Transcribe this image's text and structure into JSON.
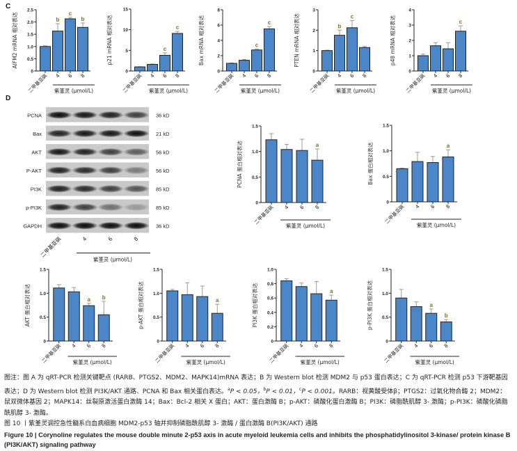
{
  "panels": {
    "c": "C",
    "d": "D"
  },
  "x_categories": [
    "二甲基亚砜",
    "4",
    "6",
    "8"
  ],
  "group_label": "紫堇灵 (μmol/L)",
  "colors": {
    "bar": "#4a86c8",
    "outline": "#222222",
    "sig": "#8a6a1a"
  },
  "western_blot": {
    "rows": [
      {
        "protein": "PCNA",
        "size": "36 kD",
        "intensity": [
          0.95,
          0.9,
          0.85,
          0.7
        ]
      },
      {
        "protein": "Bax",
        "size": "21 kD",
        "intensity": [
          0.85,
          0.9,
          0.9,
          0.95
        ]
      },
      {
        "protein": "AKT",
        "size": "56 kD",
        "intensity": [
          0.9,
          0.85,
          0.7,
          0.55
        ]
      },
      {
        "protein": "P-AKT",
        "size": "56 kD",
        "intensity": [
          0.85,
          0.8,
          0.7,
          0.4
        ]
      },
      {
        "protein": "PI3K",
        "size": "85 kD",
        "intensity": [
          0.85,
          0.8,
          0.7,
          0.6
        ]
      },
      {
        "protein": "p-PI3K",
        "size": "85 kD",
        "intensity": [
          0.85,
          0.7,
          0.45,
          0.25
        ]
      },
      {
        "protein": "GAPDH",
        "size": "36 kD",
        "intensity": [
          0.95,
          0.95,
          0.95,
          0.95
        ]
      }
    ]
  },
  "chart_data": [
    {
      "type": "bar",
      "panel": "C",
      "ylabel": "AIFM2 mRNA 相对表达",
      "ylim": [
        0,
        2.5
      ],
      "yticks": [
        "0",
        "0.5",
        "1.0",
        "1.5",
        "2.0",
        "2.5"
      ],
      "values": [
        1.0,
        1.63,
        2.13,
        1.78
      ],
      "errors": [
        0.03,
        0.3,
        0.06,
        0.18
      ],
      "significance": [
        "",
        "b",
        "c",
        "b"
      ]
    },
    {
      "type": "bar",
      "panel": "C",
      "ylabel": "p21 mRNA 相对表达",
      "ylim": [
        0,
        15
      ],
      "yticks": [
        "0",
        "5",
        "10",
        "15"
      ],
      "values": [
        1.0,
        1.6,
        3.8,
        9.1
      ],
      "errors": [
        0.05,
        0.1,
        0.6,
        0.5
      ],
      "significance": [
        "",
        "",
        "c",
        "c"
      ]
    },
    {
      "type": "bar",
      "panel": "C",
      "ylabel": "Bax mRNA 相对表达",
      "ylim": [
        0,
        8
      ],
      "yticks": [
        "0",
        "2",
        "4",
        "6",
        "8"
      ],
      "values": [
        1.0,
        1.4,
        2.75,
        5.5
      ],
      "errors": [
        0.05,
        0.1,
        0.1,
        0.3
      ],
      "significance": [
        "",
        "",
        "c",
        "c"
      ]
    },
    {
      "type": "bar",
      "panel": "C",
      "ylabel": "PTEN mRNA 相对表达",
      "ylim": [
        0,
        3
      ],
      "yticks": [
        "0",
        "1",
        "2",
        "3"
      ],
      "values": [
        1.0,
        1.75,
        2.12,
        1.15
      ],
      "errors": [
        0.02,
        0.25,
        0.35,
        0.05
      ],
      "significance": [
        "",
        "b",
        "c",
        ""
      ]
    },
    {
      "type": "bar",
      "panel": "C",
      "ylabel": "p48 mRNA 相对表达",
      "ylim": [
        0,
        4
      ],
      "yticks": [
        "0",
        "1",
        "2",
        "3",
        "4"
      ],
      "values": [
        1.0,
        1.65,
        1.45,
        2.6
      ],
      "errors": [
        0.1,
        0.2,
        0.4,
        0.35
      ],
      "significance": [
        "",
        "",
        "",
        "c"
      ]
    },
    {
      "type": "bar",
      "panel": "D",
      "ylabel": "PCNA 蛋白相对表达",
      "ylim": [
        0,
        1.5
      ],
      "yticks": [
        "0",
        "0.5",
        "1.0",
        "1.5"
      ],
      "values": [
        1.23,
        1.04,
        1.02,
        0.83
      ],
      "errors": [
        0.12,
        0.1,
        0.22,
        0.22
      ],
      "significance": [
        "",
        "",
        "",
        "a"
      ]
    },
    {
      "type": "bar",
      "panel": "D",
      "ylabel": "Bax 蛋白相对表达",
      "ylim": [
        0,
        1.5
      ],
      "yticks": [
        "0",
        "0.5",
        "1.0",
        "1.5"
      ],
      "values": [
        0.65,
        0.79,
        0.77,
        0.88
      ],
      "errors": [
        0.01,
        0.18,
        0.12,
        0.14
      ],
      "significance": [
        "",
        "",
        "",
        "a"
      ]
    },
    {
      "type": "bar",
      "panel": "D",
      "ylabel": "AKT 蛋白相对表达",
      "ylim": [
        0,
        1.5
      ],
      "yticks": [
        "0",
        "0.5",
        "1.0",
        "1.5"
      ],
      "values": [
        1.11,
        1.03,
        0.74,
        0.55
      ],
      "errors": [
        0.07,
        0.09,
        0.05,
        0.28
      ],
      "significance": [
        "",
        "",
        "a",
        "b"
      ]
    },
    {
      "type": "bar",
      "panel": "D",
      "ylabel": "p-AKT 蛋白相对表达",
      "ylim": [
        0,
        1.5
      ],
      "yticks": [
        "0",
        "0.5",
        "1.0",
        "1.5"
      ],
      "values": [
        1.05,
        0.97,
        0.93,
        0.58
      ],
      "errors": [
        0.03,
        0.25,
        0.22,
        0.19
      ],
      "significance": [
        "",
        "",
        "",
        "a"
      ]
    },
    {
      "type": "bar",
      "panel": "D",
      "ylabel": "PI3K 蛋白相对表达",
      "ylim": [
        0,
        1.0
      ],
      "yticks": [
        "0",
        "0.2",
        "0.4",
        "0.6",
        "0.8",
        "1.0"
      ],
      "values": [
        0.84,
        0.76,
        0.66,
        0.57
      ],
      "errors": [
        0.03,
        0.05,
        0.17,
        0.07
      ],
      "significance": [
        "",
        "",
        "",
        "a"
      ]
    },
    {
      "type": "bar",
      "panel": "D",
      "ylabel": "p-PI3K 蛋白相对表达",
      "ylim": [
        0,
        1.5
      ],
      "yticks": [
        "0",
        "0.5",
        "1.0",
        "1.5"
      ],
      "values": [
        0.9,
        0.72,
        0.58,
        0.4
      ],
      "errors": [
        0.18,
        0.1,
        0.09,
        0.05
      ],
      "significance": [
        "",
        "",
        "a",
        "b"
      ]
    }
  ],
  "caption": {
    "note_1": "图注：图 A 为 qRT-PCR 检测关键靶点 (RARB、PTGS2、MDM2、MAPK14)mRNA 表达；B 为 Western blot 检测 MDM2 与 p53 蛋白表达；C 为 qRT-PCR 检测 p53 下游靶基因表达；D 为 Western blot 检测 PI3K/AKT 通路、PCNA 和 Bax 相关蛋白表达。",
    "sup_a": "a",
    "p_a": "P < 0.05，",
    "sup_b": "b",
    "p_b": "P < 0.01，",
    "sup_c": "c",
    "p_c": "P < 0.001。",
    "note_2": "RARB：视黄酸受体β；PTGS2：过氧化物合酶 2；MDM2：鼠双微体基因 2；MAPK14：丝裂原激活蛋白激酶 14；Bax：Bcl-2 相关 X 蛋白；AKT：蛋白激酶 B；p-AKT：磷酸化蛋白激酶 B；PI3K：磷脂酰肌醇 3- 激酶；p-PI3K：磷酸化磷脂酰肌醇 3- 激酶。",
    "title_cn": "图 10 丨紫堇灵调控急性髓系白血病细胞 MDM2-p53 轴并抑制磷脂酰肌醇 3- 激酶 / 蛋白激酶 B(PI3K/AKT) 通路",
    "title_en": "Figure 10  |  Corynoline regulates the mouse double minute 2-p53 axis in acute myeloid leukemia cells and inhibits the phosphatidylinositol 3-kinase/ protein kinase B (PI3K/AKT) signaling pathway"
  }
}
